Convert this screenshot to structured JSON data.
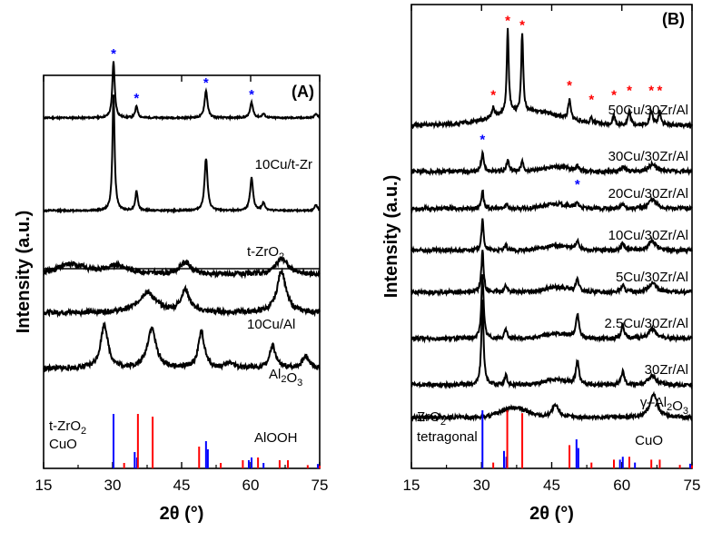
{
  "colors": {
    "zro2": "#0000ff",
    "cuo": "#ff0000",
    "trace": "#000000"
  },
  "chart_data": [
    {
      "panel": "A",
      "type": "line",
      "title": "(A)",
      "xlabel": "2θ (°)",
      "ylabel": "Intensity (a.u.)",
      "xlim": [
        15,
        75
      ],
      "xticks": [
        "15",
        "30",
        "45",
        "60",
        "75"
      ],
      "subpanels": [
        {
          "name": "upper",
          "series": [
            {
              "name": "10Cu/t-Zr",
              "label_main": "10Cu/t-Zr",
              "label_sub": "",
              "baseline": 0.22,
              "noise": 0.004,
              "peaks": [
                [
                  30.2,
                  0.29,
                  0.5
                ],
                [
                  35.2,
                  0.06,
                  0.5
                ],
                [
                  50.3,
                  0.14,
                  0.6
                ],
                [
                  60.2,
                  0.08,
                  0.6
                ],
                [
                  62.8,
                  0.02,
                  0.6
                ],
                [
                  74.2,
                  0.02,
                  0.6
                ]
              ],
              "markers": [
                {
                  "x": 30.2,
                  "symbol": "*"
                },
                {
                  "x": 35.2,
                  "symbol": "*"
                },
                {
                  "x": 50.3,
                  "symbol": "*"
                },
                {
                  "x": 60.2,
                  "symbol": "*"
                }
              ]
            },
            {
              "name": "t-ZrO2",
              "label_main": "t-ZrO",
              "label_sub": "2",
              "baseline": 0.7,
              "noise": 0.004,
              "peaks": [
                [
                  30.2,
                  0.6,
                  0.45
                ],
                [
                  35.2,
                  0.1,
                  0.5
                ],
                [
                  50.3,
                  0.27,
                  0.6
                ],
                [
                  60.2,
                  0.17,
                  0.6
                ],
                [
                  62.8,
                  0.04,
                  0.6
                ],
                [
                  74.2,
                  0.03,
                  0.6
                ]
              ],
              "markers": []
            }
          ]
        },
        {
          "name": "lower",
          "series": [
            {
              "name": "10Cu/Al",
              "label_main": "10Cu/Al",
              "label_sub": "",
              "baseline": 0.03,
              "noise": 0.012,
              "peaks": [
                [
                  21,
                  0.05,
                  6
                ],
                [
                  31,
                  0.04,
                  5
                ],
                [
                  45.8,
                  0.06,
                  2.2
                ],
                [
                  66.8,
                  0.08,
                  2.5
                ]
              ],
              "markers": []
            },
            {
              "name": "Al2O3",
              "label_main": "Al",
              "label_sub": "2",
              "label_tail": "O",
              "label_sub2": "3",
              "baseline": 0.22,
              "noise": 0.012,
              "peaks": [
                [
                  37.5,
                  0.1,
                  3.5
                ],
                [
                  45.8,
                  0.11,
                  1.8
                ],
                [
                  66.7,
                  0.21,
                  1.8
                ]
              ],
              "markers": []
            },
            {
              "name": "AlOOH",
              "label_main": "AlOOH",
              "label_sub": "",
              "baseline": 0.5,
              "noise": 0.012,
              "peaks": [
                [
                  28.2,
                  0.22,
                  1.5
                ],
                [
                  38.5,
                  0.2,
                  1.8
                ],
                [
                  49.3,
                  0.18,
                  1.3
                ],
                [
                  55.5,
                  0.03,
                  1.5
                ],
                [
                  64.8,
                  0.11,
                  1.3
                ],
                [
                  72,
                  0.06,
                  1.5
                ]
              ],
              "markers": []
            }
          ],
          "reference_lines": {
            "legend": [
              {
                "name": "t-ZrO2",
                "label_main": "t-ZrO",
                "label_sub": "2",
                "color": "#0000ff"
              },
              {
                "name": "CuO",
                "label_main": "CuO",
                "label_sub": "",
                "color": "#ff0000"
              }
            ],
            "t-ZrO2": [
              [
                30.2,
                1.0
              ],
              [
                34.8,
                0.3
              ],
              [
                35.3,
                0.2
              ],
              [
                50.3,
                0.5
              ],
              [
                50.7,
                0.35
              ],
              [
                59.6,
                0.15
              ],
              [
                60.2,
                0.2
              ],
              [
                62.8,
                0.1
              ],
              [
                74.6,
                0.08
              ]
            ],
            "CuO": [
              [
                32.5,
                0.1
              ],
              [
                35.5,
                1.0
              ],
              [
                38.7,
                0.95
              ],
              [
                48.8,
                0.4
              ],
              [
                53.5,
                0.1
              ],
              [
                58.3,
                0.15
              ],
              [
                61.6,
                0.2
              ],
              [
                66.3,
                0.15
              ],
              [
                68.1,
                0.15
              ],
              [
                72.4,
                0.06
              ],
              [
                75,
                0.05
              ]
            ]
          }
        }
      ]
    },
    {
      "panel": "B",
      "type": "line",
      "title": "(B)",
      "xlabel": "2θ (°)",
      "ylabel": "Intensity (a.u.)",
      "xlim": [
        15,
        75
      ],
      "xticks": [
        "15",
        "30",
        "45",
        "60",
        "75"
      ],
      "series": [
        {
          "name": "50Cu/30Zr/Al",
          "label_main": "50Cu/30Zr/Al",
          "label_sub": "",
          "baseline": 0.26,
          "noise": 0.004,
          "peaks": [
            [
              32.5,
              0.02,
              0.5
            ],
            [
              35.6,
              0.18,
              0.4
            ],
            [
              38.7,
              0.17,
              0.4
            ],
            [
              48.8,
              0.04,
              0.5
            ],
            [
              53.5,
              0.01,
              0.5
            ],
            [
              58.3,
              0.02,
              0.5
            ],
            [
              61.6,
              0.03,
              0.5
            ],
            [
              66.3,
              0.03,
              0.6
            ],
            [
              68.1,
              0.03,
              0.5
            ]
          ],
          "broad": [
            [
              40,
              0.03,
              10
            ]
          ],
          "markers": [
            {
              "x": 32.5,
              "symbol": "*"
            },
            {
              "x": 35.6,
              "symbol": "*"
            },
            {
              "x": 38.7,
              "symbol": "*"
            },
            {
              "x": 48.8,
              "symbol": "*"
            },
            {
              "x": 53.5,
              "symbol": "*"
            },
            {
              "x": 58.3,
              "symbol": "*"
            },
            {
              "x": 61.6,
              "symbol": "*"
            },
            {
              "x": 66.3,
              "symbol": "*"
            },
            {
              "x": 68.1,
              "symbol": "*"
            }
          ]
        },
        {
          "name": "30Cu/30Zr/Al",
          "label_main": "30Cu/30Zr/Al",
          "label_sub": "",
          "baseline": 0.36,
          "noise": 0.004,
          "peaks": [
            [
              30.2,
              0.04,
              0.5
            ],
            [
              35.6,
              0.025,
              0.5
            ],
            [
              38.7,
              0.02,
              0.5
            ],
            [
              50.5,
              0.01,
              0.6
            ],
            [
              60.2,
              0.01,
              0.6
            ],
            [
              66.5,
              0.015,
              1.5
            ]
          ],
          "broad": [
            [
              46,
              0.01,
              4
            ]
          ],
          "markers": [
            {
              "x": 30.2,
              "symbol": "*"
            },
            {
              "x": 50.5,
              "symbol": "*"
            }
          ]
        },
        {
          "name": "20Cu/30Zr/Al",
          "label_main": "20Cu/30Zr/Al",
          "label_sub": "",
          "baseline": 0.44,
          "noise": 0.004,
          "peaks": [
            [
              30.2,
              0.04,
              0.45
            ],
            [
              35.4,
              0.01,
              0.5
            ],
            [
              50.5,
              0.01,
              0.6
            ],
            [
              60.2,
              0.01,
              0.6
            ],
            [
              66.5,
              0.02,
              1.5
            ]
          ],
          "broad": [
            [
              46,
              0.01,
              4
            ]
          ],
          "markers": []
        },
        {
          "name": "10Cu/30Zr/Al",
          "label_main": "10Cu/30Zr/Al",
          "label_sub": "",
          "baseline": 0.53,
          "noise": 0.004,
          "peaks": [
            [
              30.2,
              0.065,
              0.45
            ],
            [
              35.2,
              0.01,
              0.5
            ],
            [
              50.5,
              0.02,
              0.6
            ],
            [
              60.2,
              0.015,
              0.6
            ],
            [
              66.5,
              0.02,
              1.5
            ]
          ],
          "broad": [
            [
              46,
              0.01,
              4
            ]
          ],
          "markers": []
        },
        {
          "name": "5Cu/30Zr/Al",
          "label_main": "5Cu/30Zr/Al",
          "label_sub": "",
          "baseline": 0.62,
          "noise": 0.004,
          "peaks": [
            [
              30.2,
              0.09,
              0.45
            ],
            [
              35.2,
              0.015,
              0.5
            ],
            [
              50.5,
              0.025,
              0.6
            ],
            [
              60.2,
              0.015,
              0.6
            ],
            [
              66.5,
              0.02,
              1.5
            ]
          ],
          "broad": [
            [
              46,
              0.01,
              4
            ]
          ],
          "markers": []
        },
        {
          "name": "2.5Cu/30Zr/Al",
          "label_main": "2.5Cu/30Zr/Al",
          "label_sub": "",
          "baseline": 0.72,
          "noise": 0.004,
          "peaks": [
            [
              30.2,
              0.14,
              0.45
            ],
            [
              35.2,
              0.02,
              0.5
            ],
            [
              50.5,
              0.05,
              0.6
            ],
            [
              60.2,
              0.03,
              0.6
            ],
            [
              66.5,
              0.02,
              1.5
            ]
          ],
          "broad": [
            [
              46,
              0.01,
              4
            ]
          ],
          "markers": []
        },
        {
          "name": "30Zr/Al",
          "label_main": "30Zr/Al",
          "label_sub": "",
          "baseline": 0.82,
          "noise": 0.004,
          "peaks": [
            [
              30.2,
              0.18,
              0.45
            ],
            [
              35.2,
              0.02,
              0.5
            ],
            [
              50.5,
              0.05,
              0.6
            ],
            [
              60.2,
              0.03,
              0.6
            ],
            [
              66.5,
              0.02,
              1.5
            ]
          ],
          "broad": [
            [
              46,
              0.01,
              4
            ]
          ],
          "markers": []
        },
        {
          "name": "γ–Al2O3",
          "label_main": "γ–Al",
          "label_sub": "2",
          "label_tail": "O",
          "label_sub2": "3",
          "baseline": 0.89,
          "noise": 0.004,
          "peaks": [
            [
              45.8,
              0.025,
              1.5
            ],
            [
              66.8,
              0.05,
              1.5
            ]
          ],
          "broad": [
            [
              37,
              0.02,
              4
            ]
          ],
          "markers": []
        }
      ],
      "reference_lines": {
        "legend": [
          {
            "name": "ZrO2 tetragonal",
            "label_main": "ZrO",
            "label_sub": "2",
            "label_line2": "tetragonal",
            "color": "#0000ff"
          },
          {
            "name": "CuO",
            "label_main": "CuO",
            "label_sub": "",
            "color": "#ff0000"
          }
        ],
        "ZrO2": [
          [
            30.2,
            1.0
          ],
          [
            34.8,
            0.3
          ],
          [
            35.3,
            0.2
          ],
          [
            50.3,
            0.5
          ],
          [
            50.7,
            0.35
          ],
          [
            59.6,
            0.15
          ],
          [
            60.2,
            0.2
          ],
          [
            62.8,
            0.1
          ],
          [
            74.6,
            0.08
          ]
        ],
        "CuO": [
          [
            32.5,
            0.1
          ],
          [
            35.5,
            1.0
          ],
          [
            38.7,
            0.95
          ],
          [
            48.8,
            0.4
          ],
          [
            53.5,
            0.1
          ],
          [
            58.3,
            0.15
          ],
          [
            61.6,
            0.2
          ],
          [
            66.3,
            0.15
          ],
          [
            68.1,
            0.15
          ],
          [
            72.4,
            0.06
          ],
          [
            75,
            0.05
          ]
        ]
      }
    }
  ]
}
